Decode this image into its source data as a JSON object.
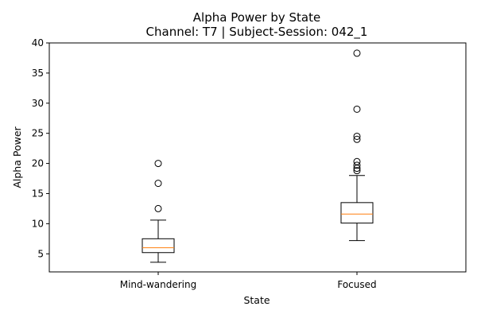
{
  "chart_data": {
    "type": "box",
    "title": "Alpha Power by State",
    "subtitle": "Channel: T7 | Subject-Session: 042_1",
    "xlabel": "State",
    "ylabel": "Alpha Power",
    "ylim": [
      2,
      40
    ],
    "yticks": [
      5,
      10,
      15,
      20,
      25,
      30,
      35,
      40
    ],
    "grid": false,
    "categories": [
      "Mind-wandering",
      "Focused"
    ],
    "series": [
      {
        "whisker_low": 3.6,
        "q1": 5.2,
        "median": 6.0,
        "q3": 7.5,
        "whisker_high": 10.6,
        "outliers": [
          12.5,
          16.7,
          20.0
        ]
      },
      {
        "whisker_low": 7.2,
        "q1": 10.1,
        "median": 11.6,
        "q3": 13.5,
        "whisker_high": 18.0,
        "outliers": [
          18.8,
          19.2,
          19.7,
          20.3,
          24.0,
          24.5,
          29.0,
          38.3
        ]
      }
    ],
    "colors": {
      "box": "#000000",
      "median": "#ff7f0e",
      "outlier_edge": "#000000"
    }
  }
}
